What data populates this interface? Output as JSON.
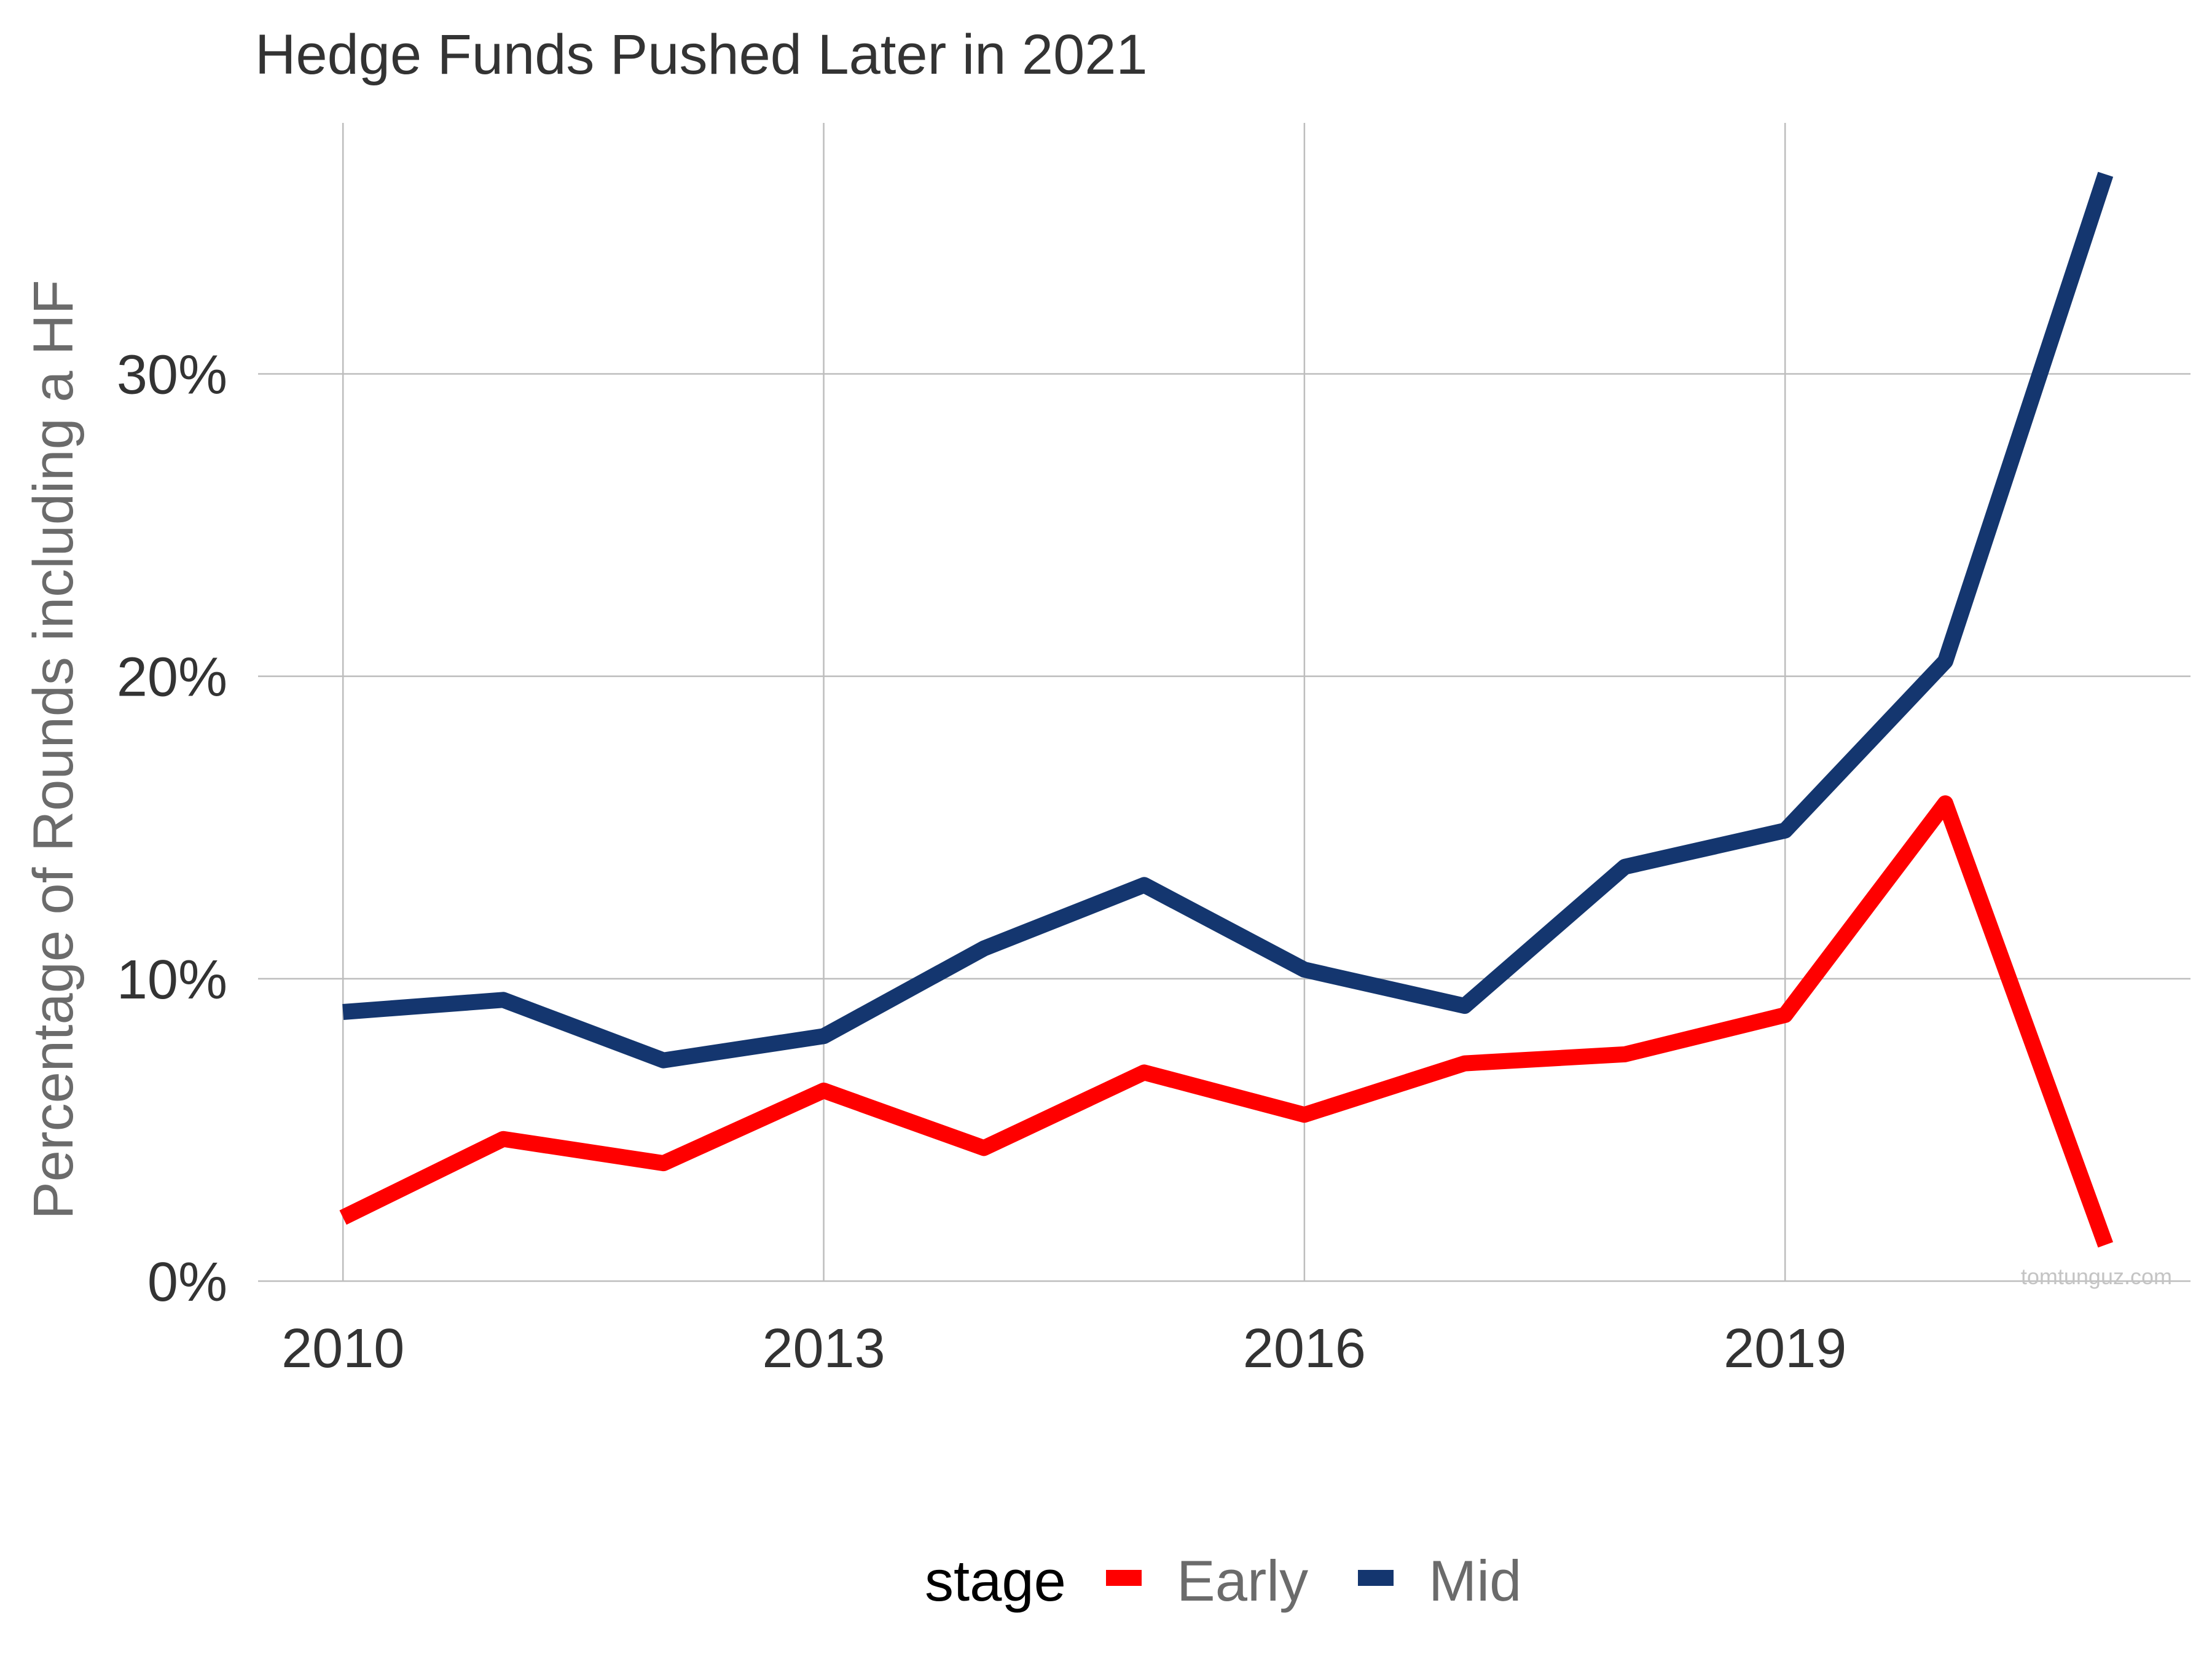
{
  "chart_data": {
    "type": "line",
    "title": "Hedge Funds Pushed Later in 2021",
    "xlabel": "",
    "ylabel": "Percentage of Rounds including a HF",
    "x": [
      2010,
      2011,
      2012,
      2013,
      2014,
      2015,
      2016,
      2017,
      2018,
      2019,
      2020,
      2021
    ],
    "xlim": [
      2009.47,
      2021.53
    ],
    "ylim": [
      0,
      38.3
    ],
    "x_ticks": [
      2010,
      2013,
      2016,
      2019
    ],
    "x_tick_labels": [
      "2010",
      "2013",
      "2016",
      "2019"
    ],
    "y_ticks": [
      0,
      10,
      20,
      30
    ],
    "y_tick_labels": [
      "0%",
      "10%",
      "20%",
      "30%"
    ],
    "grid": true,
    "legend_title": "stage",
    "legend_position": "bottom",
    "series": [
      {
        "name": "Early",
        "color": "#FF0000",
        "values": [
          2.1,
          4.7,
          3.9,
          6.3,
          4.4,
          6.9,
          5.5,
          7.2,
          7.5,
          8.8,
          15.8,
          1.2
        ]
      },
      {
        "name": "Mid",
        "color": "#14366F",
        "values": [
          8.9,
          9.3,
          7.3,
          8.1,
          11.0,
          13.1,
          10.3,
          9.1,
          13.7,
          14.9,
          20.5,
          36.6
        ]
      }
    ],
    "watermark": "tomtunguz.com"
  }
}
